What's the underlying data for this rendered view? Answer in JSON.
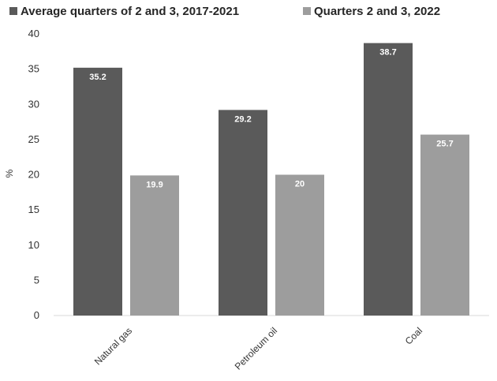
{
  "chart_data": {
    "type": "bar",
    "title": "",
    "xlabel": "",
    "ylabel": "%",
    "categories": [
      "Natural gas",
      "Petroleum oil",
      "Coal"
    ],
    "series": [
      {
        "name": "Average quarters of 2 and 3, 2017-2021",
        "values": [
          35.2,
          29.2,
          38.7
        ],
        "labels": [
          "35.2",
          "29.2",
          "38.7"
        ],
        "color": "#5a5a5a"
      },
      {
        "name": "Quarters 2 and 3, 2022",
        "values": [
          19.9,
          20,
          25.7
        ],
        "labels": [
          "19.9",
          "20",
          "25.7"
        ],
        "color": "#9d9d9d"
      }
    ],
    "ylim": [
      0,
      40
    ],
    "yticks": [
      0,
      5,
      10,
      15,
      20,
      25,
      30,
      35,
      40
    ],
    "ytick_labels": [
      "0",
      "5",
      "10",
      "15",
      "20",
      "25",
      "30",
      "35",
      "40"
    ],
    "grid": false,
    "legend": "top"
  }
}
